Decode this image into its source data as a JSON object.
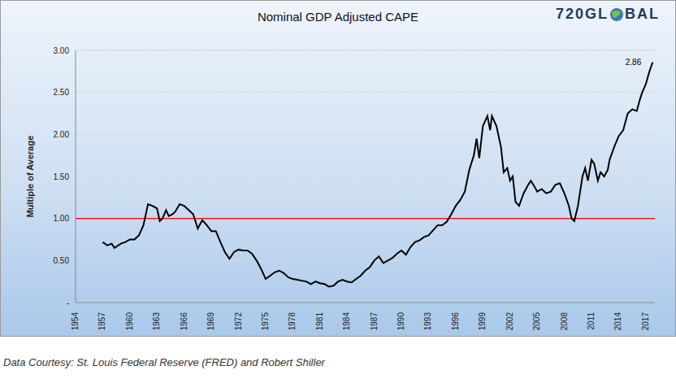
{
  "chart_data": {
    "type": "line",
    "title": "Nominal GDP Adjusted CAPE",
    "y_label": "Multiple of Average",
    "logo": [
      "720GL",
      "BAL"
    ],
    "source": "Data Courtesy: St. Louis Federal Reserve (FRED) and Robert Shiller",
    "color": "#000000",
    "x": [
      1957,
      1957.5,
      1958,
      1958.3,
      1959,
      1959.5,
      1960,
      1960.5,
      1961,
      1961.5,
      1962,
      1962.5,
      1963,
      1963.3,
      1963.6,
      1964,
      1964.3,
      1964.7,
      1965,
      1965.5,
      1966,
      1966.5,
      1967,
      1967.5,
      1968,
      1968.5,
      1969,
      1969.5,
      1970,
      1970.5,
      1971,
      1971.5,
      1972,
      1972.5,
      1973,
      1973.5,
      1974,
      1974.5,
      1975,
      1975.5,
      1976,
      1976.5,
      1977,
      1977.5,
      1978,
      1978.5,
      1979,
      1979.5,
      1980,
      1980.5,
      1981,
      1981.5,
      1982,
      1982.5,
      1983,
      1983.5,
      1984,
      1984.5,
      1985,
      1985.5,
      1986,
      1986.5,
      1987,
      1987.5,
      1988,
      1988.5,
      1989,
      1989.5,
      1990,
      1990.5,
      1991,
      1991.5,
      1992,
      1992.5,
      1993,
      1993.5,
      1994,
      1994.5,
      1995,
      1995.5,
      1996,
      1996.5,
      1997,
      1997.5,
      1998,
      1998.3,
      1998.6,
      1999,
      1999.5,
      1999.8,
      2000,
      2000.5,
      2001,
      2001.3,
      2001.7,
      2002,
      2002.3,
      2002.6,
      2003,
      2003.5,
      2004,
      2004.3,
      2004.7,
      2005,
      2005.5,
      2006,
      2006.5,
      2007,
      2007.5,
      2008,
      2008.5,
      2008.8,
      2009.1,
      2009.5,
      2010,
      2010.3,
      2010.6,
      2011,
      2011.3,
      2011.7,
      2012,
      2012.4,
      2012.8,
      2013,
      2013.5,
      2014,
      2014.5,
      2015,
      2015.5,
      2016,
      2016.3,
      2016.6,
      2017,
      2017.4,
      2017.75
    ],
    "values": [
      0.72,
      0.68,
      0.7,
      0.65,
      0.7,
      0.72,
      0.75,
      0.75,
      0.8,
      0.92,
      1.17,
      1.15,
      1.12,
      0.97,
      1.0,
      1.1,
      1.03,
      1.05,
      1.08,
      1.17,
      1.15,
      1.1,
      1.05,
      0.88,
      0.98,
      0.92,
      0.85,
      0.85,
      0.72,
      0.6,
      0.52,
      0.6,
      0.63,
      0.62,
      0.62,
      0.58,
      0.5,
      0.4,
      0.28,
      0.32,
      0.36,
      0.38,
      0.35,
      0.3,
      0.28,
      0.27,
      0.26,
      0.25,
      0.22,
      0.25,
      0.23,
      0.22,
      0.19,
      0.2,
      0.25,
      0.27,
      0.25,
      0.24,
      0.28,
      0.32,
      0.38,
      0.42,
      0.5,
      0.55,
      0.47,
      0.5,
      0.53,
      0.58,
      0.62,
      0.57,
      0.66,
      0.72,
      0.74,
      0.78,
      0.8,
      0.86,
      0.92,
      0.92,
      0.96,
      1.05,
      1.15,
      1.22,
      1.32,
      1.58,
      1.75,
      1.95,
      1.72,
      2.1,
      2.22,
      2.05,
      2.22,
      2.1,
      1.85,
      1.55,
      1.6,
      1.45,
      1.5,
      1.2,
      1.15,
      1.3,
      1.4,
      1.45,
      1.38,
      1.32,
      1.35,
      1.3,
      1.32,
      1.4,
      1.42,
      1.3,
      1.15,
      1.0,
      0.97,
      1.15,
      1.5,
      1.6,
      1.45,
      1.7,
      1.65,
      1.45,
      1.55,
      1.5,
      1.58,
      1.7,
      1.85,
      1.98,
      2.05,
      2.25,
      2.3,
      2.28,
      2.4,
      2.5,
      2.6,
      2.75,
      2.86
    ],
    "xlim": [
      1954,
      2018
    ],
    "xticks": [
      1954,
      1957,
      1960,
      1963,
      1966,
      1969,
      1972,
      1975,
      1978,
      1981,
      1984,
      1987,
      1990,
      1993,
      1996,
      1999,
      2002,
      2005,
      2008,
      2011,
      2014,
      2017
    ],
    "ylim": [
      0,
      3
    ],
    "yticks": [
      {
        "value": 0,
        "label": "-"
      },
      {
        "value": 0.5,
        "label": "0.50"
      },
      {
        "value": 1,
        "label": "1.00"
      },
      {
        "value": 1.5,
        "label": "1.50"
      },
      {
        "value": 2,
        "label": "2.00"
      },
      {
        "value": 2.5,
        "label": "2.50"
      },
      {
        "value": 3,
        "label": "3.00"
      }
    ],
    "grid": true,
    "reference_line": {
      "value": 1,
      "color": "#ff0000"
    },
    "annotations": [
      {
        "text": "2.86",
        "x": 2017.75,
        "y": 2.86
      }
    ]
  }
}
